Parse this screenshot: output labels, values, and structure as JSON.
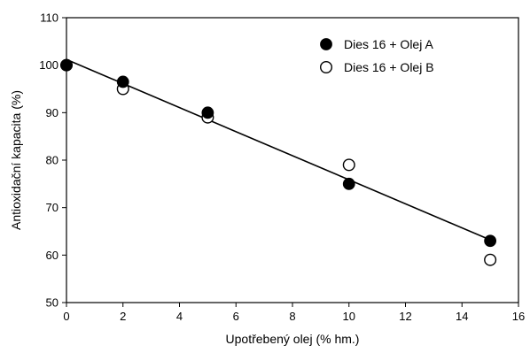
{
  "chart_data": {
    "type": "scatter",
    "xlabel": "Upotřebený olej (% hm.)",
    "ylabel": "Antioxidační kapacita (%)",
    "xlim": [
      0,
      16
    ],
    "ylim": [
      50,
      110
    ],
    "xticks": [
      0,
      2,
      4,
      6,
      8,
      10,
      12,
      14,
      16
    ],
    "yticks": [
      50,
      60,
      70,
      80,
      90,
      100,
      110
    ],
    "grid": false,
    "legend_position": "top-right",
    "series": [
      {
        "name": "Dies 16 + Olej A",
        "marker": "filled-circle",
        "x": [
          0,
          2,
          5,
          10,
          15
        ],
        "y": [
          100,
          96.5,
          90,
          75,
          63
        ]
      },
      {
        "name": "Dies 16 + Olej B",
        "marker": "open-circle",
        "x": [
          0,
          2,
          5,
          10,
          15
        ],
        "y": [
          100,
          95,
          89,
          79,
          59
        ]
      }
    ],
    "trendline": {
      "type": "linear",
      "x": [
        0,
        15
      ],
      "y": [
        101.2,
        63.2
      ]
    }
  }
}
